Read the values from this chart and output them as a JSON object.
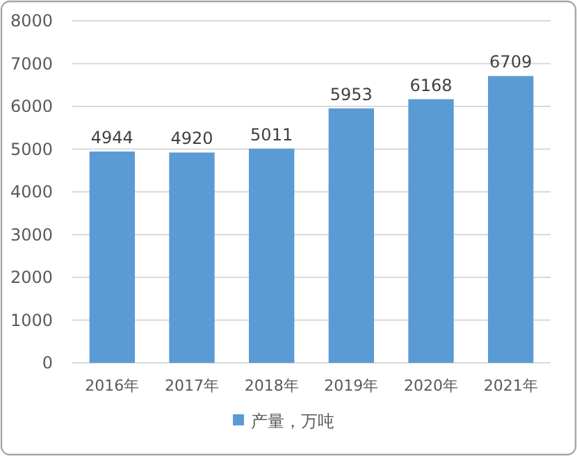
{
  "chart_data": {
    "type": "bar",
    "categories": [
      "2016年",
      "2017年",
      "2018年",
      "2019年",
      "2020年",
      "2021年"
    ],
    "series": [
      {
        "name": "产量，万吨",
        "color": "#5b9bd5",
        "values": [
          4944,
          4920,
          5011,
          5953,
          6168,
          6709
        ]
      }
    ],
    "ylim": [
      0,
      8000
    ],
    "yticks": [
      0,
      1000,
      2000,
      3000,
      4000,
      5000,
      6000,
      7000,
      8000
    ],
    "grid": "y",
    "legend": "bottom",
    "data_labels": true
  }
}
